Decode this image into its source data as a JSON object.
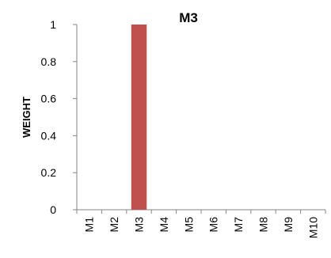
{
  "chart_data": {
    "type": "bar",
    "title": "M3",
    "xlabel": "",
    "ylabel": "WEIGHT",
    "categories": [
      "M1",
      "M2",
      "M3",
      "M4",
      "M5",
      "M6",
      "M7",
      "M8",
      "M9",
      "M10"
    ],
    "values": [
      0,
      0,
      1,
      0,
      0,
      0,
      0,
      0,
      0,
      0
    ],
    "ylim": [
      0,
      1
    ],
    "yticks": [
      "0",
      "0.2",
      "0.4",
      "0.6",
      "0.8",
      "1"
    ],
    "grid": false,
    "legend": "none",
    "colors": {
      "bar": "#c0504d",
      "axis": "#868686"
    }
  }
}
